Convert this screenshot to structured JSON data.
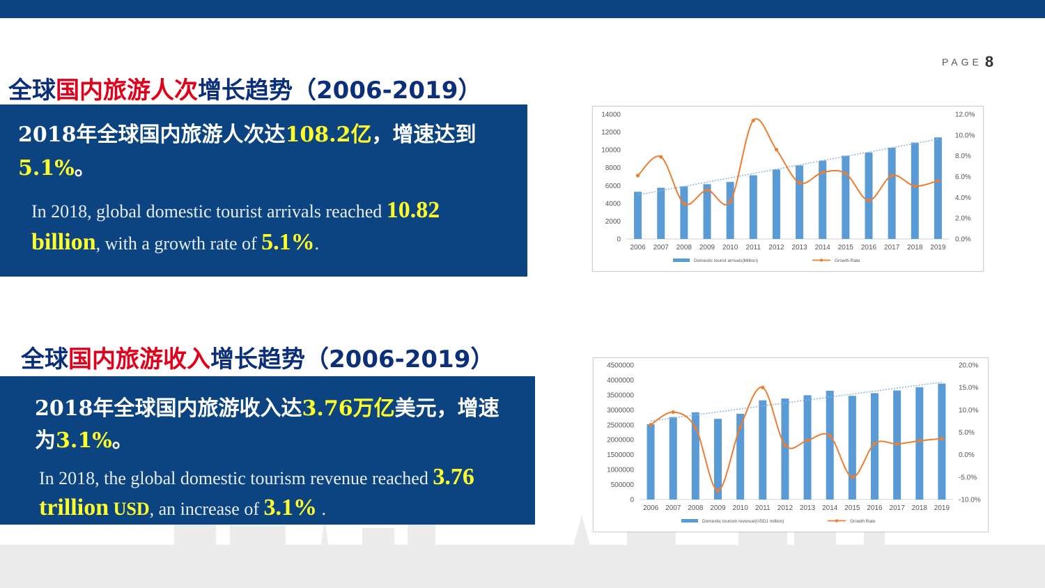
{
  "page": {
    "word": "PAGE",
    "number": "8"
  },
  "section1": {
    "title_pre": "全球",
    "title_hl": "国内旅游人次",
    "title_post": "增长趋势（2006-2019）",
    "zh_a": "2018年全球国内旅游人次达",
    "zh_b": "108.2亿",
    "zh_c": "，增速达到",
    "zh_d": "5.1%",
    "zh_e": "。",
    "en_a": "In 2018, global domestic tourist arrivals reached ",
    "en_b": "10.82 billion",
    "en_c": ", with a growth rate of ",
    "en_d": "5.1%",
    "en_e": "."
  },
  "section2": {
    "title_pre": "全球",
    "title_hl": "国内旅游收入",
    "title_post": "增长趋势（2006-2019）",
    "zh_a": "2018年全球国内旅游收入达",
    "zh_b": "3.76万亿",
    "zh_c": "美元，增速为",
    "zh_d": "3.1%",
    "zh_e": "。",
    "en_a": "In 2018, the global domestic tourism revenue reached ",
    "en_b": "3.76 trillion",
    "en_c": " USD",
    "en_d": ", an increase of ",
    "en_e": "3.1%",
    "en_f": " ."
  },
  "colors": {
    "bar": "#5b9bd5",
    "line": "#ed7d31",
    "trend": "#8fb3d9",
    "box": "#0b4480",
    "heading": "#0b2f78",
    "highlight": "#e0001b"
  },
  "chart_data": [
    {
      "type": "bar",
      "categories": [
        "2006",
        "2007",
        "2008",
        "2009",
        "2010",
        "2011",
        "2012",
        "2013",
        "2014",
        "2015",
        "2016",
        "2017",
        "2018",
        "2019"
      ],
      "series": [
        {
          "name": "Domestic tourist arrivals(Million)",
          "type": "bar",
          "axis": "left",
          "values": [
            5300,
            5750,
            5900,
            6150,
            6400,
            7150,
            7800,
            8250,
            8800,
            9350,
            9700,
            10250,
            10820,
            11400
          ]
        },
        {
          "name": "Growth Rate",
          "type": "line",
          "axis": "right",
          "values": [
            6.1,
            7.9,
            3.4,
            4.7,
            3.6,
            11.4,
            8.6,
            5.4,
            6.4,
            6.3,
            3.7,
            6.1,
            5.1,
            5.6
          ]
        }
      ],
      "left_ylim": [
        0,
        14000
      ],
      "left_ticks": [
        "0",
        "2000",
        "4000",
        "6000",
        "8000",
        "10000",
        "12000",
        "14000"
      ],
      "right_ylim": [
        0,
        12
      ],
      "right_ticks": [
        "0.0%",
        "2.0%",
        "4.0%",
        "6.0%",
        "8.0%",
        "10.0%",
        "12.0%"
      ],
      "trendline": true,
      "grid": false,
      "legend": "bottom"
    },
    {
      "type": "bar",
      "categories": [
        "2006",
        "2007",
        "2008",
        "2009",
        "2010",
        "2011",
        "2012",
        "2013",
        "2014",
        "2015",
        "2016",
        "2017",
        "2018",
        "2019"
      ],
      "series": [
        {
          "name": "Domestic tourism revenue(USD1 million)",
          "type": "bar",
          "axis": "left",
          "values": [
            2520000,
            2760000,
            2920000,
            2700000,
            2870000,
            3320000,
            3380000,
            3490000,
            3640000,
            3470000,
            3560000,
            3650000,
            3760000,
            3880000
          ]
        },
        {
          "name": "Growth Rate",
          "type": "line",
          "axis": "right",
          "values": [
            6.7,
            9.5,
            6.0,
            -8.0,
            6.2,
            15.0,
            2.1,
            3.2,
            4.2,
            -5.0,
            2.5,
            2.4,
            3.1,
            3.6
          ]
        }
      ],
      "left_ylim": [
        0,
        4500000
      ],
      "left_ticks": [
        "0",
        "500000",
        "1000000",
        "1500000",
        "2000000",
        "2500000",
        "3000000",
        "3500000",
        "4000000",
        "4500000"
      ],
      "right_ylim": [
        -10,
        20
      ],
      "right_ticks": [
        "-10.0%",
        "-5.0%",
        "0.0%",
        "5.0%",
        "10.0%",
        "15.0%",
        "20.0%"
      ],
      "trendline": true,
      "grid": false,
      "legend": "bottom"
    }
  ]
}
